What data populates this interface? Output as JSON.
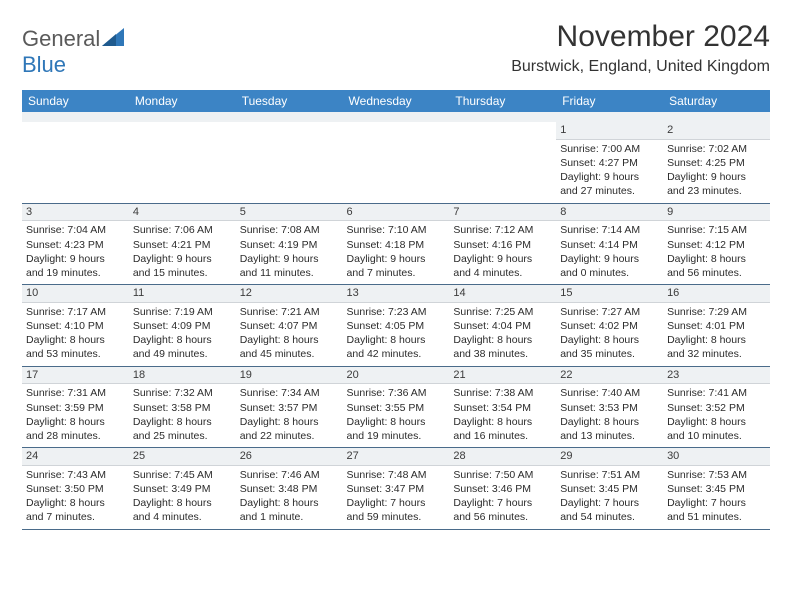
{
  "brand": {
    "name1": "General",
    "name2": "Blue",
    "sail_color": "#2f77b8",
    "text_color": "#5a5a5a"
  },
  "header": {
    "month_title": "November 2024",
    "location": "Burstwick, England, United Kingdom"
  },
  "columns": [
    "Sunday",
    "Monday",
    "Tuesday",
    "Wednesday",
    "Thursday",
    "Friday",
    "Saturday"
  ],
  "style": {
    "header_bg": "#3c84c5",
    "header_fg": "#ffffff",
    "daynum_bg": "#eef1f3",
    "row_divider": "#4a6b8a",
    "text_color": "#2b2b2b",
    "cell_fontsize": 10.5,
    "header_fontsize": 12
  },
  "weeks": [
    [
      null,
      null,
      null,
      null,
      null,
      {
        "n": "1",
        "sunrise": "Sunrise: 7:00 AM",
        "sunset": "Sunset: 4:27 PM",
        "daylight": "Daylight: 9 hours and 27 minutes."
      },
      {
        "n": "2",
        "sunrise": "Sunrise: 7:02 AM",
        "sunset": "Sunset: 4:25 PM",
        "daylight": "Daylight: 9 hours and 23 minutes."
      }
    ],
    [
      {
        "n": "3",
        "sunrise": "Sunrise: 7:04 AM",
        "sunset": "Sunset: 4:23 PM",
        "daylight": "Daylight: 9 hours and 19 minutes."
      },
      {
        "n": "4",
        "sunrise": "Sunrise: 7:06 AM",
        "sunset": "Sunset: 4:21 PM",
        "daylight": "Daylight: 9 hours and 15 minutes."
      },
      {
        "n": "5",
        "sunrise": "Sunrise: 7:08 AM",
        "sunset": "Sunset: 4:19 PM",
        "daylight": "Daylight: 9 hours and 11 minutes."
      },
      {
        "n": "6",
        "sunrise": "Sunrise: 7:10 AM",
        "sunset": "Sunset: 4:18 PM",
        "daylight": "Daylight: 9 hours and 7 minutes."
      },
      {
        "n": "7",
        "sunrise": "Sunrise: 7:12 AM",
        "sunset": "Sunset: 4:16 PM",
        "daylight": "Daylight: 9 hours and 4 minutes."
      },
      {
        "n": "8",
        "sunrise": "Sunrise: 7:14 AM",
        "sunset": "Sunset: 4:14 PM",
        "daylight": "Daylight: 9 hours and 0 minutes."
      },
      {
        "n": "9",
        "sunrise": "Sunrise: 7:15 AM",
        "sunset": "Sunset: 4:12 PM",
        "daylight": "Daylight: 8 hours and 56 minutes."
      }
    ],
    [
      {
        "n": "10",
        "sunrise": "Sunrise: 7:17 AM",
        "sunset": "Sunset: 4:10 PM",
        "daylight": "Daylight: 8 hours and 53 minutes."
      },
      {
        "n": "11",
        "sunrise": "Sunrise: 7:19 AM",
        "sunset": "Sunset: 4:09 PM",
        "daylight": "Daylight: 8 hours and 49 minutes."
      },
      {
        "n": "12",
        "sunrise": "Sunrise: 7:21 AM",
        "sunset": "Sunset: 4:07 PM",
        "daylight": "Daylight: 8 hours and 45 minutes."
      },
      {
        "n": "13",
        "sunrise": "Sunrise: 7:23 AM",
        "sunset": "Sunset: 4:05 PM",
        "daylight": "Daylight: 8 hours and 42 minutes."
      },
      {
        "n": "14",
        "sunrise": "Sunrise: 7:25 AM",
        "sunset": "Sunset: 4:04 PM",
        "daylight": "Daylight: 8 hours and 38 minutes."
      },
      {
        "n": "15",
        "sunrise": "Sunrise: 7:27 AM",
        "sunset": "Sunset: 4:02 PM",
        "daylight": "Daylight: 8 hours and 35 minutes."
      },
      {
        "n": "16",
        "sunrise": "Sunrise: 7:29 AM",
        "sunset": "Sunset: 4:01 PM",
        "daylight": "Daylight: 8 hours and 32 minutes."
      }
    ],
    [
      {
        "n": "17",
        "sunrise": "Sunrise: 7:31 AM",
        "sunset": "Sunset: 3:59 PM",
        "daylight": "Daylight: 8 hours and 28 minutes."
      },
      {
        "n": "18",
        "sunrise": "Sunrise: 7:32 AM",
        "sunset": "Sunset: 3:58 PM",
        "daylight": "Daylight: 8 hours and 25 minutes."
      },
      {
        "n": "19",
        "sunrise": "Sunrise: 7:34 AM",
        "sunset": "Sunset: 3:57 PM",
        "daylight": "Daylight: 8 hours and 22 minutes."
      },
      {
        "n": "20",
        "sunrise": "Sunrise: 7:36 AM",
        "sunset": "Sunset: 3:55 PM",
        "daylight": "Daylight: 8 hours and 19 minutes."
      },
      {
        "n": "21",
        "sunrise": "Sunrise: 7:38 AM",
        "sunset": "Sunset: 3:54 PM",
        "daylight": "Daylight: 8 hours and 16 minutes."
      },
      {
        "n": "22",
        "sunrise": "Sunrise: 7:40 AM",
        "sunset": "Sunset: 3:53 PM",
        "daylight": "Daylight: 8 hours and 13 minutes."
      },
      {
        "n": "23",
        "sunrise": "Sunrise: 7:41 AM",
        "sunset": "Sunset: 3:52 PM",
        "daylight": "Daylight: 8 hours and 10 minutes."
      }
    ],
    [
      {
        "n": "24",
        "sunrise": "Sunrise: 7:43 AM",
        "sunset": "Sunset: 3:50 PM",
        "daylight": "Daylight: 8 hours and 7 minutes."
      },
      {
        "n": "25",
        "sunrise": "Sunrise: 7:45 AM",
        "sunset": "Sunset: 3:49 PM",
        "daylight": "Daylight: 8 hours and 4 minutes."
      },
      {
        "n": "26",
        "sunrise": "Sunrise: 7:46 AM",
        "sunset": "Sunset: 3:48 PM",
        "daylight": "Daylight: 8 hours and 1 minute."
      },
      {
        "n": "27",
        "sunrise": "Sunrise: 7:48 AM",
        "sunset": "Sunset: 3:47 PM",
        "daylight": "Daylight: 7 hours and 59 minutes."
      },
      {
        "n": "28",
        "sunrise": "Sunrise: 7:50 AM",
        "sunset": "Sunset: 3:46 PM",
        "daylight": "Daylight: 7 hours and 56 minutes."
      },
      {
        "n": "29",
        "sunrise": "Sunrise: 7:51 AM",
        "sunset": "Sunset: 3:45 PM",
        "daylight": "Daylight: 7 hours and 54 minutes."
      },
      {
        "n": "30",
        "sunrise": "Sunrise: 7:53 AM",
        "sunset": "Sunset: 3:45 PM",
        "daylight": "Daylight: 7 hours and 51 minutes."
      }
    ]
  ]
}
